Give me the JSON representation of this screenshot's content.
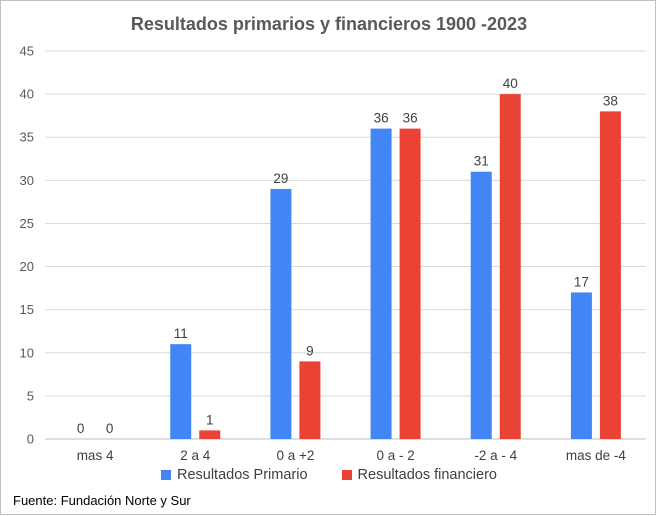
{
  "chart_data": {
    "type": "bar",
    "title": "Resultados primarios y financieros 1900 -2023",
    "categories": [
      "mas 4",
      "2 a 4",
      "0 a +2",
      "0 a - 2",
      "-2 a - 4",
      "mas de -4"
    ],
    "series": [
      {
        "name": "Resultados Primario",
        "values": [
          0,
          11,
          29,
          36,
          31,
          17
        ],
        "color": "#4285f4"
      },
      {
        "name": "Resultados financiero",
        "values": [
          0,
          1,
          9,
          36,
          40,
          38
        ],
        "color": "#ea4335"
      }
    ],
    "xlabel": "",
    "ylabel": "",
    "ylim": [
      0,
      45
    ],
    "yticks": [
      "0",
      "5",
      "10",
      "15",
      "20",
      "25",
      "30",
      "35",
      "40",
      "45"
    ],
    "grid": true,
    "legend_position": "bottom",
    "data_labels": true
  },
  "source": "Fuente: Fundación Norte y Sur"
}
